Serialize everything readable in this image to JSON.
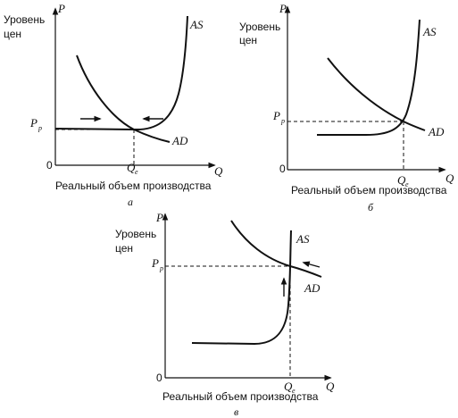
{
  "axis_labels": {
    "price_axis": "P",
    "price_level_line1": "Уровень",
    "price_level_line2": "цен",
    "quantity_axis": "Q",
    "real_output": "Реальный объем производства",
    "origin": "0"
  },
  "curve_labels": {
    "aggregate_supply": "AS",
    "aggregate_demand": "AD"
  },
  "equilibrium": {
    "price_main": "P",
    "price_sub": "р",
    "quantity_main": "Q",
    "quantity_sub": "e"
  },
  "panels": [
    {
      "letter": "а"
    },
    {
      "letter": "б"
    },
    {
      "letter": "в"
    }
  ]
}
